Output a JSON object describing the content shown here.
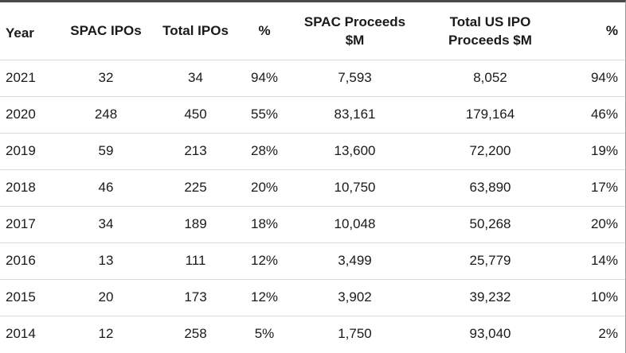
{
  "headers": [
    "Year",
    "SPAC IPOs",
    "Total IPOs",
    "%",
    "SPAC Proceeds $M",
    "Total US IPO Proceeds $M",
    "%"
  ],
  "header_lines": [
    [
      "Year"
    ],
    [
      "SPAC IPOs"
    ],
    [
      "Total IPOs"
    ],
    [
      "%"
    ],
    [
      "SPAC Proceeds",
      "$M"
    ],
    [
      "Total US IPO",
      "Proceeds $M"
    ],
    [
      "%"
    ]
  ],
  "rows": [
    [
      "2021",
      "32",
      "34",
      "94%",
      "7,593",
      "8,052",
      "94%"
    ],
    [
      "2020",
      "248",
      "450",
      "55%",
      "83,161",
      "179,164",
      "46%"
    ],
    [
      "2019",
      "59",
      "213",
      "28%",
      "13,600",
      "72,200",
      "19%"
    ],
    [
      "2018",
      "46",
      "225",
      "20%",
      "10,750",
      "63,890",
      "17%"
    ],
    [
      "2017",
      "34",
      "189",
      "18%",
      "10,048",
      "50,268",
      "20%"
    ],
    [
      "2016",
      "13",
      "111",
      "12%",
      "3,499",
      "25,779",
      "14%"
    ],
    [
      "2015",
      "20",
      "173",
      "12%",
      "3,902",
      "39,232",
      "10%"
    ],
    [
      "2014",
      "12",
      "258",
      "5%",
      "1,750",
      "93,040",
      "2%"
    ]
  ],
  "chart_data": {
    "type": "table",
    "columns": [
      "Year",
      "SPAC IPOs",
      "Total IPOs",
      "%",
      "SPAC Proceeds $M",
      "Total US IPO Proceeds $M",
      "%"
    ],
    "rows": [
      [
        "2021",
        32,
        34,
        "94%",
        7593,
        8052,
        "94%"
      ],
      [
        "2020",
        248,
        450,
        "55%",
        83161,
        179164,
        "46%"
      ],
      [
        "2019",
        59,
        213,
        "28%",
        13600,
        72200,
        "19%"
      ],
      [
        "2018",
        46,
        225,
        "20%",
        10750,
        63890,
        "17%"
      ],
      [
        "2017",
        34,
        189,
        "18%",
        10048,
        50268,
        "20%"
      ],
      [
        "2016",
        13,
        111,
        "12%",
        3499,
        25779,
        "14%"
      ],
      [
        "2015",
        20,
        173,
        "12%",
        3902,
        39232,
        "10%"
      ],
      [
        "2014",
        12,
        258,
        "5%",
        1750,
        93040,
        "2%"
      ]
    ]
  }
}
